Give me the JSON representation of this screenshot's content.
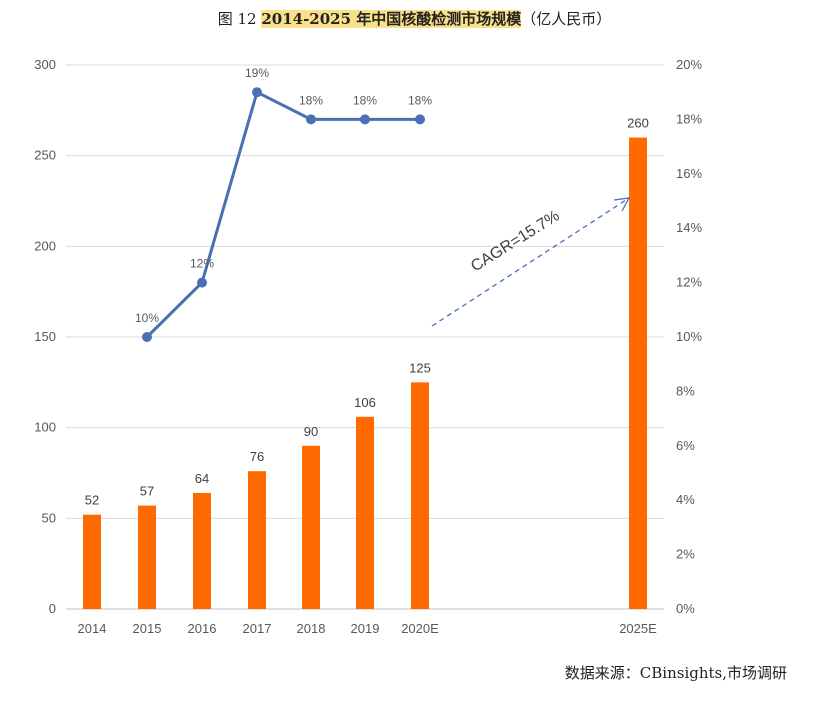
{
  "title": {
    "prefix": "图 12 ",
    "highlight": "2014-2025 年中国核酸检测市场规模",
    "suffix": "（亿人民币）"
  },
  "source": "数据来源：CBinsights,市场调研",
  "chart_data": {
    "type": "bar",
    "categories": [
      "2014",
      "2015",
      "2016",
      "2017",
      "2018",
      "2019",
      "2020E",
      "2025E"
    ],
    "series": [
      {
        "type": "bar",
        "axis": "left",
        "color": "#ff6a00",
        "values": [
          52,
          57,
          64,
          76,
          90,
          106,
          125,
          260
        ]
      },
      {
        "type": "line",
        "axis": "right",
        "color": "#4a6fb5",
        "values": [
          null,
          10,
          12,
          19,
          18,
          18,
          18,
          null
        ],
        "labels": [
          "",
          "10%",
          "12%",
          "19%",
          "18%",
          "18%",
          "18%",
          ""
        ]
      }
    ],
    "ylim": [
      0,
      300
    ],
    "yticks": [
      "0",
      "50",
      "100",
      "150",
      "200",
      "250",
      "300"
    ],
    "y2lim": [
      0,
      20
    ],
    "y2ticks": [
      "0%",
      "2%",
      "4%",
      "6%",
      "8%",
      "10%",
      "12%",
      "14%",
      "16%",
      "18%",
      "20%"
    ],
    "annotation": "CAGR=15.7%",
    "grid": true
  }
}
